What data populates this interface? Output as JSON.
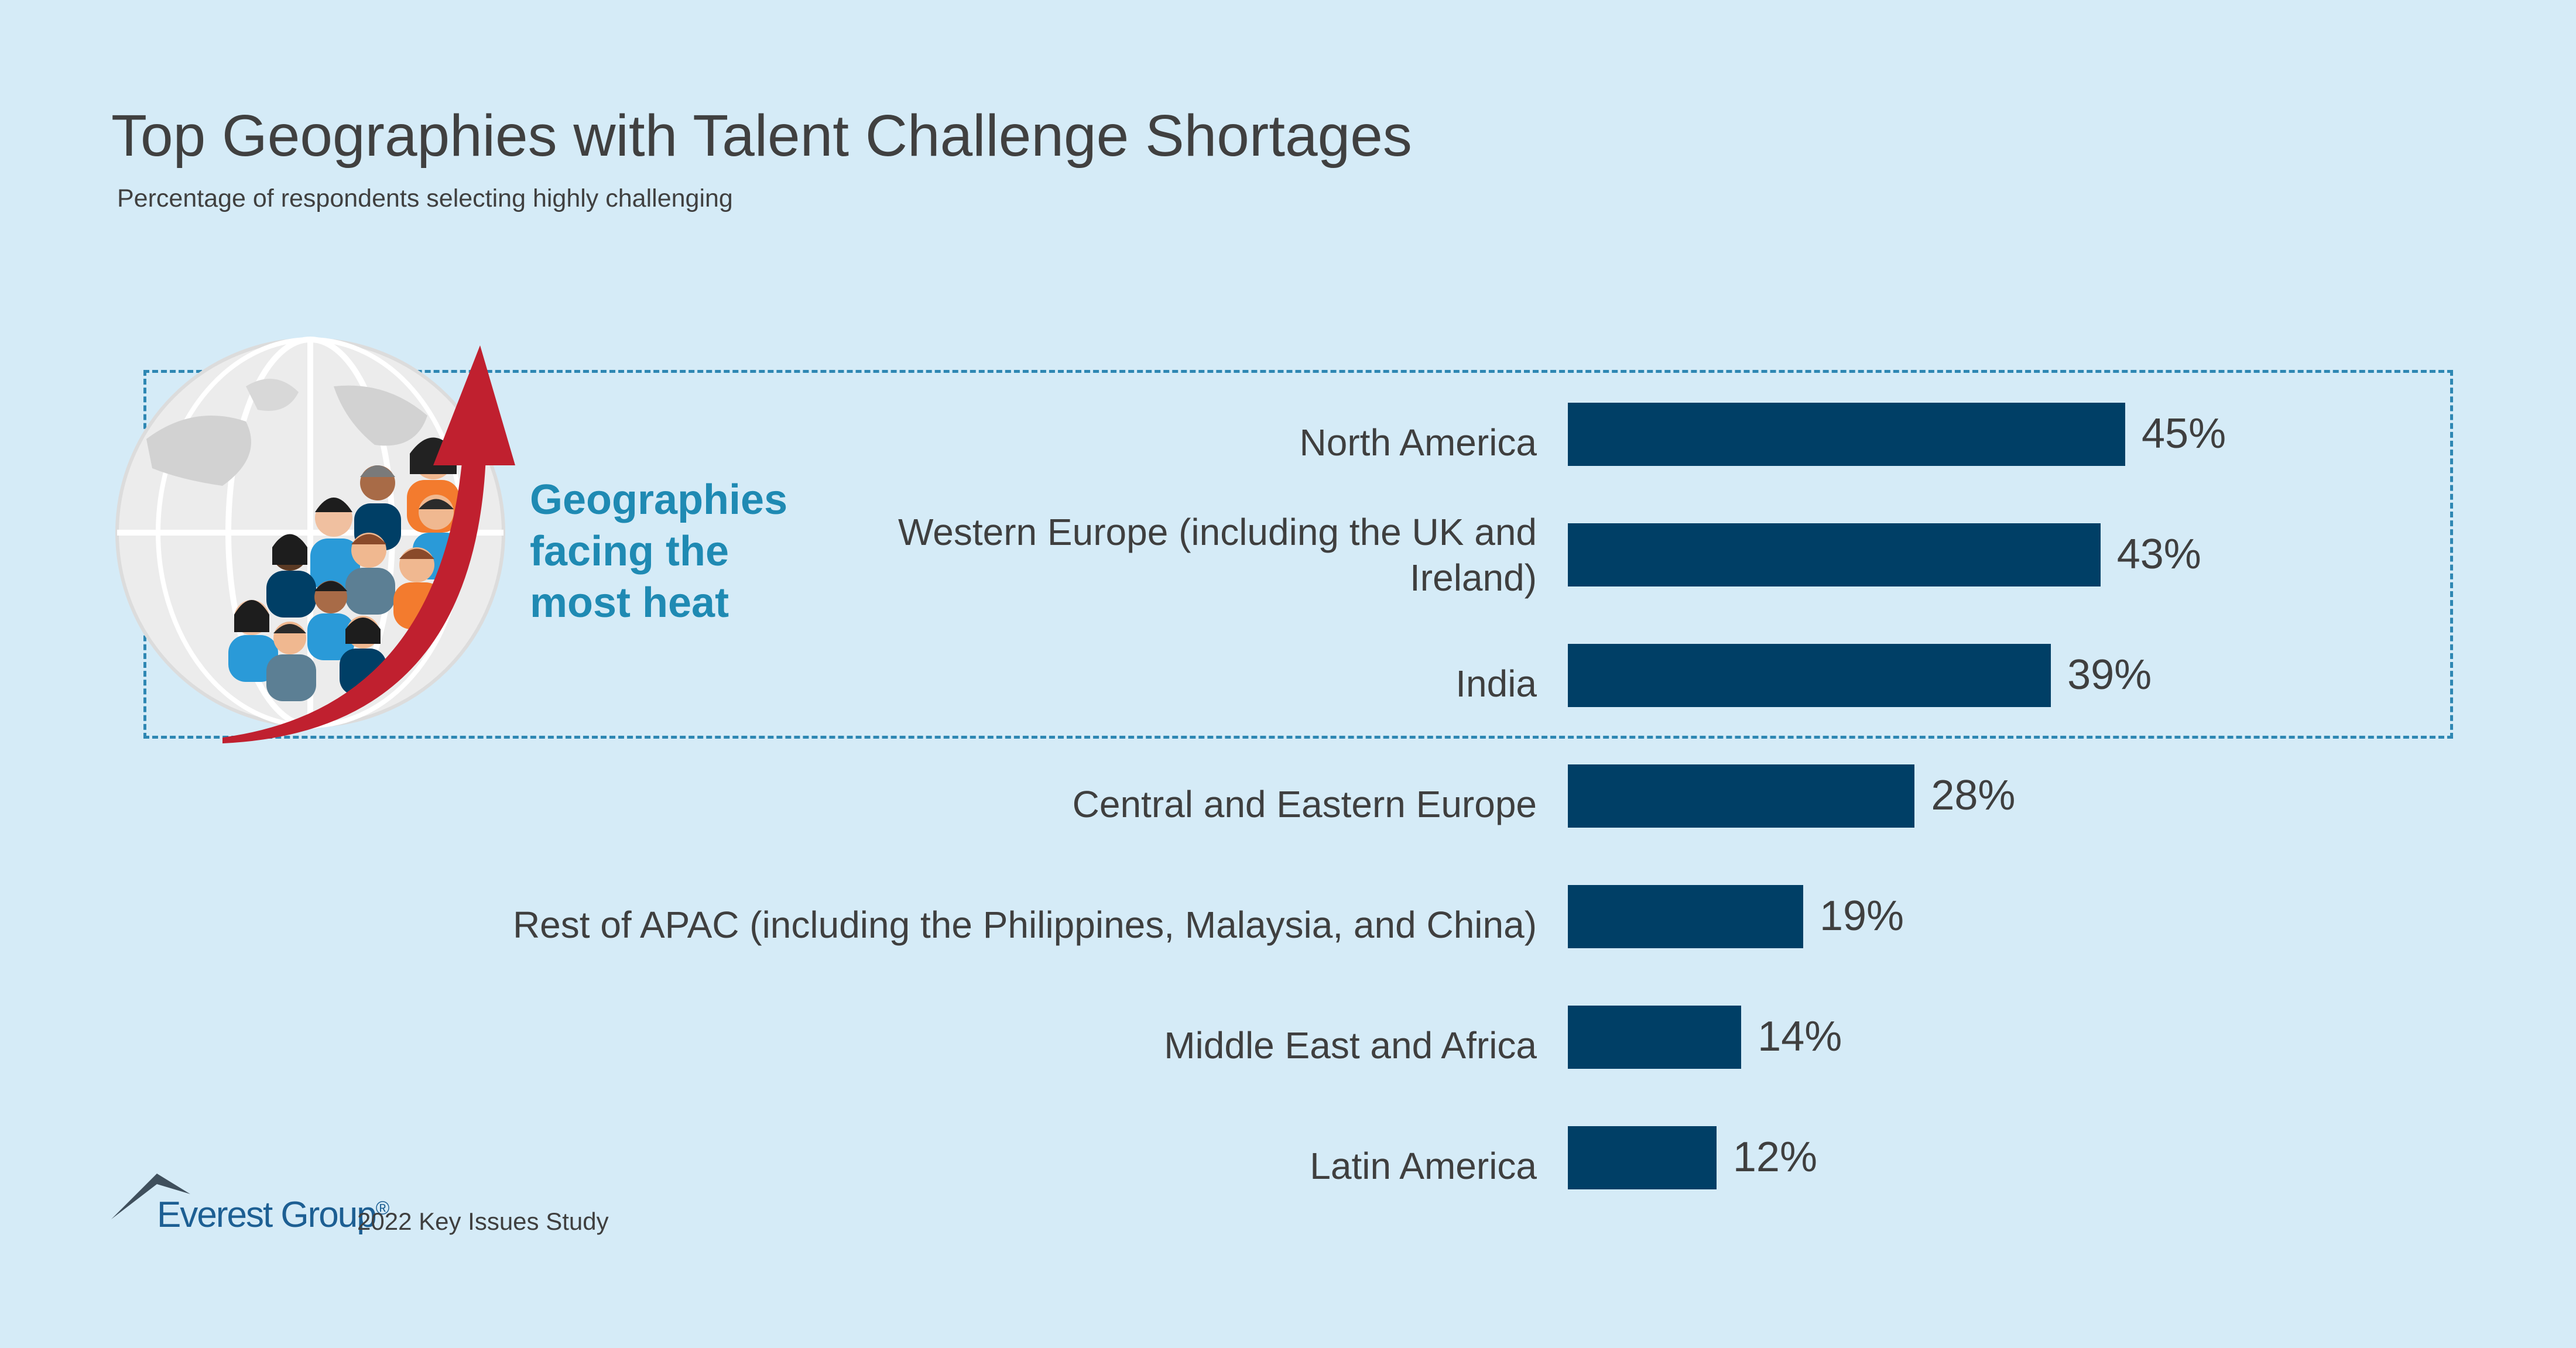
{
  "header": {
    "title": "Top Geographies with Talent Challenge Shortages",
    "subtitle": "Percentage of respondents selecting highly challenging"
  },
  "callout": {
    "line1": "Geographies",
    "line2": "facing the",
    "line3": "most heat",
    "icons": [
      "globe-icon",
      "people-icon",
      "upward-arrow-icon"
    ]
  },
  "colors": {
    "bar": "#003f66",
    "background": "#d5ebf7",
    "callout_text": "#1f8ab3",
    "highlight_border": "#2e87b3",
    "arrow": "#c0202f"
  },
  "chart_data": {
    "type": "bar",
    "orientation": "horizontal",
    "categories": [
      "North America",
      "Western Europe (including the UK and Ireland)",
      "India",
      "Central and Eastern Europe",
      "Rest of APAC (including the Philippines, Malaysia, and China)",
      "Middle East and Africa",
      "Latin America"
    ],
    "category_lines": [
      [
        "North America"
      ],
      [
        "Western Europe (including the UK and",
        "Ireland)"
      ],
      [
        "India"
      ],
      [
        "Central and Eastern Europe"
      ],
      [
        "Rest of APAC (including the Philippines, Malaysia, and China)"
      ],
      [
        "Middle East and Africa"
      ],
      [
        "Latin America"
      ]
    ],
    "values": [
      45,
      43,
      39,
      28,
      19,
      14,
      12
    ],
    "value_labels": [
      "45%",
      "43%",
      "39%",
      "28%",
      "19%",
      "14%",
      "12%"
    ],
    "unit": "%",
    "title": "Top Geographies with Talent Challenge Shortages",
    "subtitle": "Percentage of respondents selecting highly challenging",
    "xlim": [
      0,
      45
    ],
    "grid": false,
    "legend": "none",
    "highlighted_categories": [
      "North America",
      "Western Europe (including the UK and Ireland)",
      "India"
    ]
  },
  "footer": {
    "brand": "Everest Group",
    "registered": "®",
    "study": "2022 Key Issues Study"
  }
}
